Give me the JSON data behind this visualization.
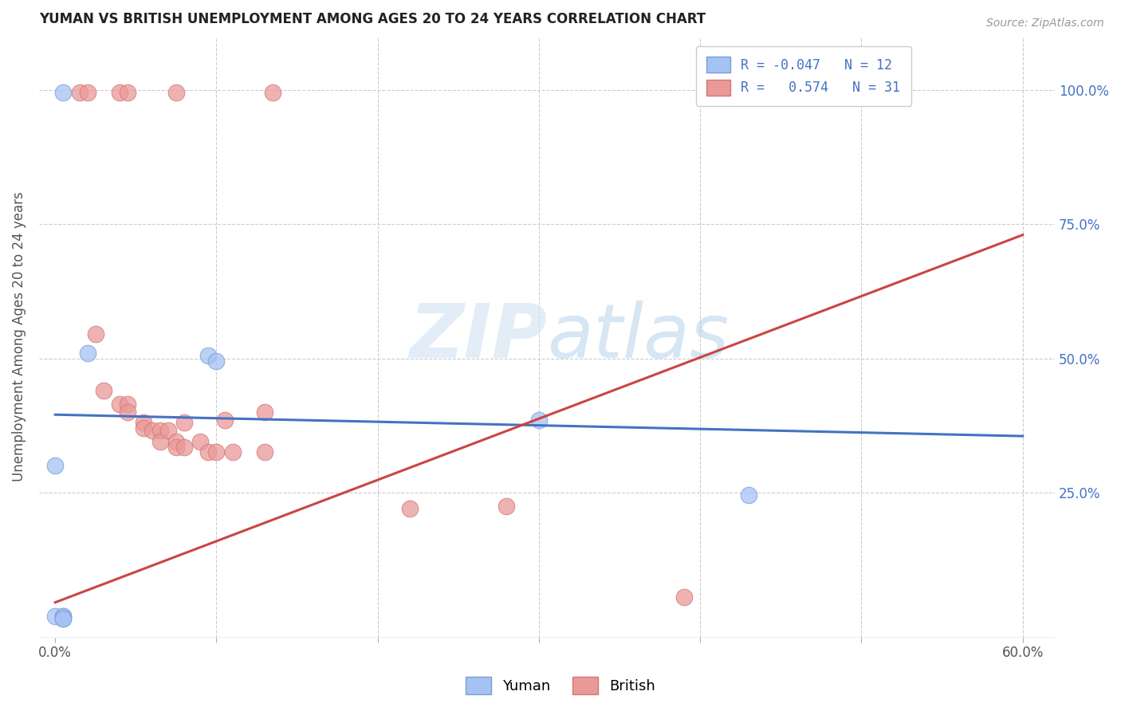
{
  "title": "YUMAN VS BRITISH UNEMPLOYMENT AMONG AGES 20 TO 24 YEARS CORRELATION CHART",
  "source": "Source: ZipAtlas.com",
  "ylabel": "Unemployment Among Ages 20 to 24 years",
  "watermark_zip": "ZIP",
  "watermark_atlas": "atlas",
  "legend_blue_label": "R = -0.047   N = 12",
  "legend_pink_label": "R =   0.574   N = 31",
  "blue_color": "#a4c2f4",
  "pink_color": "#ea9999",
  "trend_blue_color": "#4472c4",
  "trend_pink_color": "#cc4444",
  "blue_scatter": [
    [
      0.005,
      0.995
    ],
    [
      0.02,
      0.51
    ],
    [
      0.0,
      0.3
    ],
    [
      0.095,
      0.505
    ],
    [
      0.1,
      0.495
    ],
    [
      0.0,
      0.02
    ],
    [
      0.005,
      0.02
    ],
    [
      0.005,
      0.02
    ],
    [
      0.005,
      0.015
    ],
    [
      0.005,
      0.015
    ],
    [
      0.3,
      0.385
    ],
    [
      0.43,
      0.245
    ]
  ],
  "pink_scatter": [
    [
      0.015,
      0.995
    ],
    [
      0.02,
      0.995
    ],
    [
      0.04,
      0.995
    ],
    [
      0.045,
      0.995
    ],
    [
      0.075,
      0.995
    ],
    [
      0.135,
      0.995
    ],
    [
      0.025,
      0.545
    ],
    [
      0.03,
      0.44
    ],
    [
      0.04,
      0.415
    ],
    [
      0.045,
      0.415
    ],
    [
      0.045,
      0.4
    ],
    [
      0.055,
      0.38
    ],
    [
      0.055,
      0.37
    ],
    [
      0.06,
      0.365
    ],
    [
      0.065,
      0.365
    ],
    [
      0.065,
      0.345
    ],
    [
      0.07,
      0.365
    ],
    [
      0.075,
      0.345
    ],
    [
      0.075,
      0.335
    ],
    [
      0.08,
      0.38
    ],
    [
      0.08,
      0.335
    ],
    [
      0.09,
      0.345
    ],
    [
      0.095,
      0.325
    ],
    [
      0.1,
      0.325
    ],
    [
      0.105,
      0.385
    ],
    [
      0.11,
      0.325
    ],
    [
      0.13,
      0.4
    ],
    [
      0.13,
      0.325
    ],
    [
      0.22,
      0.22
    ],
    [
      0.28,
      0.225
    ],
    [
      0.39,
      0.055
    ]
  ],
  "blue_trend_x": [
    0.0,
    0.6
  ],
  "blue_trend_y": [
    0.395,
    0.355
  ],
  "pink_trend_x": [
    0.0,
    0.6
  ],
  "pink_trend_y": [
    0.045,
    0.73
  ],
  "xlim": [
    -0.01,
    0.62
  ],
  "ylim": [
    -0.02,
    1.1
  ],
  "xticks": [
    0.0,
    0.1,
    0.2,
    0.3,
    0.4,
    0.5,
    0.6
  ],
  "xticklabels": [
    "0.0%",
    "",
    "",
    "",
    "",
    "",
    "60.0%"
  ],
  "yticks_right": [
    1.0,
    0.75,
    0.5,
    0.25
  ],
  "yticklabels_right": [
    "100.0%",
    "75.0%",
    "50.0%",
    "25.0%"
  ],
  "yticks_left": [
    0.0,
    0.25,
    0.5,
    0.75,
    1.0
  ]
}
